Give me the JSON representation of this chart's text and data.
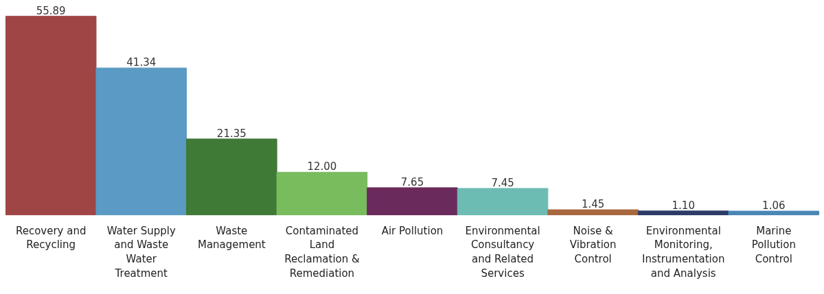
{
  "chart_data": {
    "type": "bar",
    "categories": [
      "Recovery and Recycling",
      "Water Supply and Waste Water Treatment",
      "Waste Management",
      "Contaminated Land Reclamation & Remediation",
      "Air Pollution",
      "Environmental Consultancy and Related Services",
      "Noise & Vibration Control",
      "Environmental Monitoring, Instrumentation and Analysis",
      "Marine Pollution Control"
    ],
    "values": [
      55.89,
      41.34,
      21.35,
      12.0,
      7.65,
      7.45,
      1.45,
      1.1,
      1.06
    ],
    "value_labels": [
      "55.89",
      "41.34",
      "21.35",
      "12.00",
      "7.65",
      "7.45",
      "1.45",
      "1.10",
      "1.06"
    ],
    "colors": [
      "#a04545",
      "#5a9ac4",
      "#3f7a36",
      "#78bc5e",
      "#6a2a5c",
      "#6cbcb4",
      "#a8683f",
      "#2c3a66",
      "#4a86b6"
    ],
    "grid": false
  }
}
